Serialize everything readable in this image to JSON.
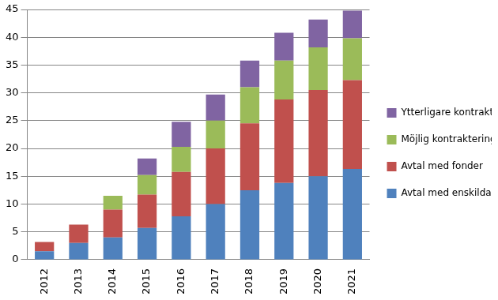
{
  "chart_data": {
    "type": "bar",
    "stacked": true,
    "grid": true,
    "legend": "right",
    "categories": [
      "2012",
      "2013",
      "2014",
      "2015",
      "2016",
      "2017",
      "2018",
      "2019",
      "2020",
      "2021"
    ],
    "ylim": [
      0,
      45
    ],
    "yticks": [
      0,
      5,
      10,
      15,
      20,
      25,
      30,
      35,
      40,
      45
    ],
    "series": [
      {
        "name": "Avtal med enskilda projekt",
        "color": "#4f81bd",
        "values": [
          1.5,
          3,
          4,
          5.7,
          7.8,
          10,
          12.5,
          13.8,
          15,
          16.3
        ]
      },
      {
        "name": "Avtal med fonder",
        "color": "#c0504d",
        "values": [
          1.7,
          3.3,
          5,
          6,
          8,
          10,
          12,
          15,
          15.5,
          16
        ]
      },
      {
        "name": "Möjlig kontraktering beviljade medel",
        "color": "#9bbb59",
        "values": [
          null,
          null,
          2.5,
          3.5,
          4.5,
          5,
          6.5,
          7,
          7.7,
          7.5
        ]
      },
      {
        "name": "Ytterligare kontraktering",
        "color": "#8064a2",
        "values": [
          null,
          null,
          null,
          3,
          4.5,
          4.7,
          4.8,
          5,
          5,
          5
        ]
      }
    ]
  }
}
